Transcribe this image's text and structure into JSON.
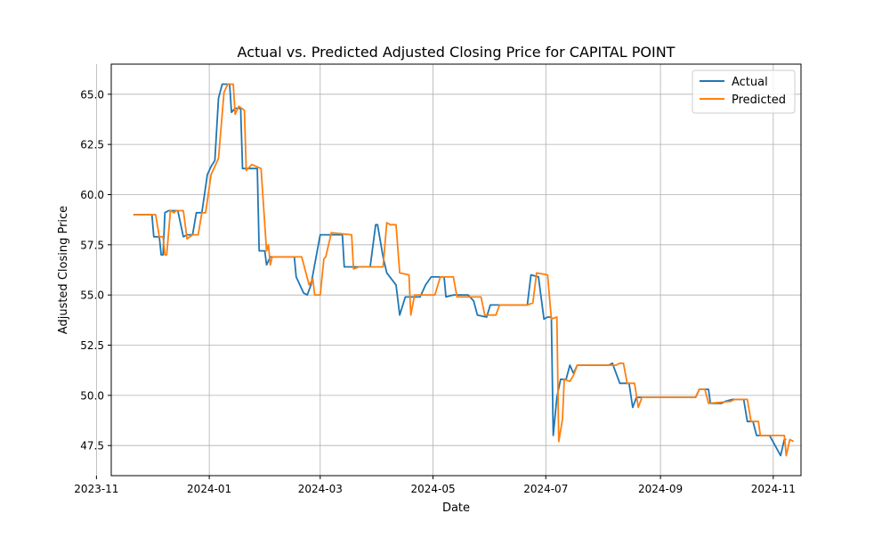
{
  "chart_data": {
    "type": "line",
    "title": "Actual vs. Predicted Adjusted Closing Price for CAPITAL POINT",
    "xlabel": "Date",
    "ylabel": "Adjusted Closing Price",
    "xlim": [
      "2023-11-09",
      "2024-11-16"
    ],
    "ylim": [
      46.0,
      66.5
    ],
    "grid": true,
    "legend_position": "top-right",
    "x_ticks": [
      {
        "date": "2023-11-01",
        "label": "2023-11"
      },
      {
        "date": "2024-01-01",
        "label": "2024-01"
      },
      {
        "date": "2024-03-01",
        "label": "2024-03"
      },
      {
        "date": "2024-05-01",
        "label": "2024-05"
      },
      {
        "date": "2024-07-01",
        "label": "2024-07"
      },
      {
        "date": "2024-09-01",
        "label": "2024-09"
      },
      {
        "date": "2024-11-01",
        "label": "2024-11"
      }
    ],
    "y_ticks": [
      {
        "value": 47.5,
        "label": "47.5"
      },
      {
        "value": 50.0,
        "label": "50.0"
      },
      {
        "value": 52.5,
        "label": "52.5"
      },
      {
        "value": 55.0,
        "label": "55.0"
      },
      {
        "value": 57.5,
        "label": "57.5"
      },
      {
        "value": 60.0,
        "label": "60.0"
      },
      {
        "value": 62.5,
        "label": "62.5"
      },
      {
        "value": 65.0,
        "label": "65.0"
      }
    ],
    "series": [
      {
        "name": "Actual",
        "color": "#1f77b4",
        "points": [
          [
            "2023-11-21",
            59.0
          ],
          [
            "2023-12-01",
            59.0
          ],
          [
            "2023-12-02",
            57.9
          ],
          [
            "2023-12-05",
            57.9
          ],
          [
            "2023-12-06",
            57.0
          ],
          [
            "2023-12-07",
            57.0
          ],
          [
            "2023-12-08",
            59.1
          ],
          [
            "2023-12-10",
            59.2
          ],
          [
            "2023-12-12",
            59.2
          ],
          [
            "2023-12-15",
            59.2
          ],
          [
            "2023-12-18",
            57.9
          ],
          [
            "2023-12-20",
            58.0
          ],
          [
            "2023-12-23",
            58.0
          ],
          [
            "2023-12-25",
            59.1
          ],
          [
            "2023-12-28",
            59.1
          ],
          [
            "2023-12-31",
            61.0
          ],
          [
            "2024-01-02",
            61.4
          ],
          [
            "2024-01-04",
            61.7
          ],
          [
            "2024-01-06",
            64.8
          ],
          [
            "2024-01-08",
            65.5
          ],
          [
            "2024-01-12",
            65.5
          ],
          [
            "2024-01-13",
            64.1
          ],
          [
            "2024-01-15",
            64.3
          ],
          [
            "2024-01-18",
            64.3
          ],
          [
            "2024-01-19",
            61.3
          ],
          [
            "2024-01-23",
            61.3
          ],
          [
            "2024-01-27",
            61.3
          ],
          [
            "2024-01-28",
            57.2
          ],
          [
            "2024-01-31",
            57.2
          ],
          [
            "2024-02-01",
            56.5
          ],
          [
            "2024-02-03",
            56.9
          ],
          [
            "2024-02-16",
            56.9
          ],
          [
            "2024-02-17",
            55.9
          ],
          [
            "2024-02-21",
            55.1
          ],
          [
            "2024-02-23",
            55.0
          ],
          [
            "2024-02-25",
            55.5
          ],
          [
            "2024-02-28",
            57.0
          ],
          [
            "2024-03-01",
            58.0
          ],
          [
            "2024-03-03",
            58.0
          ],
          [
            "2024-03-13",
            58.0
          ],
          [
            "2024-03-14",
            56.4
          ],
          [
            "2024-03-17",
            56.4
          ],
          [
            "2024-03-28",
            56.4
          ],
          [
            "2024-03-31",
            58.5
          ],
          [
            "2024-04-01",
            58.5
          ],
          [
            "2024-04-04",
            56.9
          ],
          [
            "2024-04-06",
            56.1
          ],
          [
            "2024-04-11",
            55.5
          ],
          [
            "2024-04-13",
            54.0
          ],
          [
            "2024-04-16",
            54.9
          ],
          [
            "2024-04-20",
            54.9
          ],
          [
            "2024-04-24",
            54.9
          ],
          [
            "2024-04-27",
            55.5
          ],
          [
            "2024-04-30",
            55.9
          ],
          [
            "2024-05-04",
            55.9
          ],
          [
            "2024-05-07",
            55.9
          ],
          [
            "2024-05-08",
            54.9
          ],
          [
            "2024-05-12",
            55.0
          ],
          [
            "2024-05-20",
            55.0
          ],
          [
            "2024-05-23",
            54.7
          ],
          [
            "2024-05-25",
            54.0
          ],
          [
            "2024-05-30",
            53.9
          ],
          [
            "2024-06-01",
            54.5
          ],
          [
            "2024-06-10",
            54.5
          ],
          [
            "2024-06-21",
            54.5
          ],
          [
            "2024-06-23",
            56.0
          ],
          [
            "2024-06-27",
            55.9
          ],
          [
            "2024-06-30",
            53.8
          ],
          [
            "2024-07-02",
            53.9
          ],
          [
            "2024-07-04",
            53.9
          ],
          [
            "2024-07-05",
            48.0
          ],
          [
            "2024-07-07",
            49.9
          ],
          [
            "2024-07-09",
            50.8
          ],
          [
            "2024-07-12",
            50.8
          ],
          [
            "2024-07-14",
            51.5
          ],
          [
            "2024-07-16",
            51.1
          ],
          [
            "2024-07-18",
            51.5
          ],
          [
            "2024-07-26",
            51.5
          ],
          [
            "2024-08-04",
            51.5
          ],
          [
            "2024-08-06",
            51.6
          ],
          [
            "2024-08-10",
            50.6
          ],
          [
            "2024-08-15",
            50.6
          ],
          [
            "2024-08-17",
            49.4
          ],
          [
            "2024-08-19",
            49.9
          ],
          [
            "2024-09-10",
            49.9
          ],
          [
            "2024-09-20",
            49.9
          ],
          [
            "2024-09-22",
            50.3
          ],
          [
            "2024-09-27",
            50.3
          ],
          [
            "2024-09-28",
            49.6
          ],
          [
            "2024-10-04",
            49.6
          ],
          [
            "2024-10-06",
            49.7
          ],
          [
            "2024-10-10",
            49.8
          ],
          [
            "2024-10-16",
            49.8
          ],
          [
            "2024-10-18",
            48.7
          ],
          [
            "2024-10-21",
            48.7
          ],
          [
            "2024-10-23",
            48.0
          ],
          [
            "2024-10-30",
            48.0
          ],
          [
            "2024-11-05",
            47.0
          ],
          [
            "2024-11-07",
            47.8
          ],
          [
            "2024-11-08",
            47.8
          ]
        ]
      },
      {
        "name": "Predicted",
        "color": "#ff7f0e",
        "points": [
          [
            "2023-11-21",
            59.0
          ],
          [
            "2023-12-03",
            59.0
          ],
          [
            "2023-12-05",
            57.9
          ],
          [
            "2023-12-07",
            57.9
          ],
          [
            "2023-12-08",
            57.0
          ],
          [
            "2023-12-09",
            57.0
          ],
          [
            "2023-12-11",
            59.2
          ],
          [
            "2023-12-13",
            59.1
          ],
          [
            "2023-12-14",
            59.2
          ],
          [
            "2023-12-18",
            59.2
          ],
          [
            "2023-12-20",
            57.8
          ],
          [
            "2023-12-23",
            58.0
          ],
          [
            "2023-12-26",
            58.0
          ],
          [
            "2023-12-28",
            59.1
          ],
          [
            "2023-12-30",
            59.1
          ],
          [
            "2024-01-02",
            61.0
          ],
          [
            "2024-01-06",
            61.8
          ],
          [
            "2024-01-09",
            65.1
          ],
          [
            "2024-01-11",
            65.5
          ],
          [
            "2024-01-14",
            65.5
          ],
          [
            "2024-01-15",
            64.0
          ],
          [
            "2024-01-17",
            64.4
          ],
          [
            "2024-01-20",
            64.2
          ],
          [
            "2024-01-21",
            61.2
          ],
          [
            "2024-01-24",
            61.5
          ],
          [
            "2024-01-29",
            61.3
          ],
          [
            "2024-02-01",
            57.2
          ],
          [
            "2024-02-02",
            57.5
          ],
          [
            "2024-02-03",
            56.5
          ],
          [
            "2024-02-04",
            56.9
          ],
          [
            "2024-02-20",
            56.9
          ],
          [
            "2024-02-24",
            55.5
          ],
          [
            "2024-02-26",
            55.8
          ],
          [
            "2024-02-27",
            55.0
          ],
          [
            "2024-03-01",
            55.0
          ],
          [
            "2024-03-03",
            56.8
          ],
          [
            "2024-03-04",
            56.9
          ],
          [
            "2024-03-07",
            58.1
          ],
          [
            "2024-03-18",
            58.0
          ],
          [
            "2024-03-19",
            56.3
          ],
          [
            "2024-03-22",
            56.4
          ],
          [
            "2024-04-04",
            56.4
          ],
          [
            "2024-04-06",
            58.6
          ],
          [
            "2024-04-08",
            58.5
          ],
          [
            "2024-04-11",
            58.5
          ],
          [
            "2024-04-13",
            56.1
          ],
          [
            "2024-04-18",
            56.0
          ],
          [
            "2024-04-19",
            54.0
          ],
          [
            "2024-04-21",
            55.0
          ],
          [
            "2024-05-02",
            55.0
          ],
          [
            "2024-05-05",
            55.9
          ],
          [
            "2024-05-12",
            55.9
          ],
          [
            "2024-05-14",
            54.9
          ],
          [
            "2024-05-27",
            54.9
          ],
          [
            "2024-05-29",
            54.0
          ],
          [
            "2024-06-04",
            54.0
          ],
          [
            "2024-06-06",
            54.5
          ],
          [
            "2024-06-21",
            54.5
          ],
          [
            "2024-06-24",
            54.6
          ],
          [
            "2024-06-26",
            56.1
          ],
          [
            "2024-07-02",
            56.0
          ],
          [
            "2024-07-04",
            53.8
          ],
          [
            "2024-07-07",
            53.9
          ],
          [
            "2024-07-08",
            47.7
          ],
          [
            "2024-07-10",
            48.8
          ],
          [
            "2024-07-11",
            50.8
          ],
          [
            "2024-07-14",
            50.7
          ],
          [
            "2024-07-16",
            51.0
          ],
          [
            "2024-07-18",
            51.5
          ],
          [
            "2024-08-08",
            51.5
          ],
          [
            "2024-08-10",
            51.6
          ],
          [
            "2024-08-12",
            51.6
          ],
          [
            "2024-08-14",
            50.6
          ],
          [
            "2024-08-18",
            50.6
          ],
          [
            "2024-08-20",
            49.4
          ],
          [
            "2024-08-22",
            49.9
          ],
          [
            "2024-08-30",
            49.9
          ],
          [
            "2024-09-20",
            49.9
          ],
          [
            "2024-09-22",
            50.3
          ],
          [
            "2024-09-25",
            50.3
          ],
          [
            "2024-09-27",
            49.6
          ],
          [
            "2024-10-09",
            49.7
          ],
          [
            "2024-10-11",
            49.8
          ],
          [
            "2024-10-18",
            49.8
          ],
          [
            "2024-10-20",
            48.7
          ],
          [
            "2024-10-24",
            48.7
          ],
          [
            "2024-10-25",
            48.0
          ],
          [
            "2024-11-04",
            48.0
          ],
          [
            "2024-11-07",
            48.0
          ],
          [
            "2024-11-08",
            47.0
          ],
          [
            "2024-11-10",
            47.8
          ],
          [
            "2024-11-12",
            47.7
          ]
        ]
      }
    ]
  }
}
